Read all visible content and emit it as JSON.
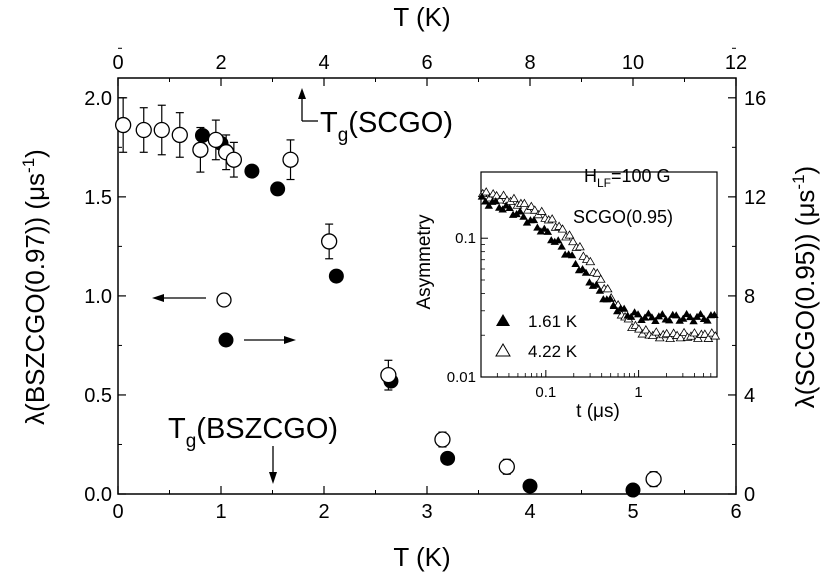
{
  "chart_data": [
    {
      "type": "scatter",
      "xlabel_bottom": "T (K)",
      "xlabel_top": "T (K)",
      "ylabel_left": "λ(BSZCGO(0.97)) (μs-1)",
      "ylabel_right": "λ(SCGO(0.95)) (μs-1)",
      "xlim_bottom": [
        0,
        6
      ],
      "xlim_top": [
        0,
        12
      ],
      "ylim_left": [
        0,
        2.1
      ],
      "ylim_right": [
        0,
        16.8
      ],
      "xticks_bottom": [
        "0",
        "1",
        "2",
        "3",
        "4",
        "5",
        "6"
      ],
      "xticks_top": [
        "0",
        "2",
        "4",
        "6",
        "8",
        "10",
        "12"
      ],
      "yticks_left": [
        "0.0",
        "0.5",
        "1.0",
        "1.5",
        "2.0"
      ],
      "yticks_right": [
        "0",
        "4",
        "8",
        "12",
        "16"
      ],
      "series": [
        {
          "marker": "filled-circle",
          "axes": "bottom-left",
          "x": [
            0.05,
            0.82,
            1.0,
            1.05,
            1.3,
            1.55,
            2.12,
            2.65,
            3.2,
            4.0,
            5.0
          ],
          "y": [
            1.86,
            1.81,
            1.77,
            1.73,
            1.63,
            1.54,
            1.1,
            0.57,
            0.18,
            0.04,
            0.02
          ]
        },
        {
          "marker": "open-circle",
          "axes": "top-right",
          "x": [
            0.1,
            0.5,
            0.85,
            1.2,
            1.6,
            1.9,
            2.1,
            2.25,
            3.35,
            4.1,
            5.25,
            6.3,
            7.55,
            10.4
          ],
          "y": [
            14.9,
            14.7,
            14.7,
            14.5,
            13.9,
            14.3,
            13.8,
            13.5,
            13.5,
            10.2,
            4.8,
            2.2,
            1.1,
            0.6
          ],
          "yerr": [
            1.1,
            0.9,
            1.0,
            0.9,
            0.9,
            0.8,
            0.7,
            0.7,
            0.8,
            0.7,
            0.6,
            0.3,
            0.3,
            0.3
          ]
        }
      ],
      "annotations": [
        {
          "text": "Tg(SCGO)",
          "value_top_axis": 3.6
        },
        {
          "text": "Tg(BSZCGO)",
          "value_bottom_axis": 1.5
        }
      ],
      "legend": {
        "open_symbol_axis": "left arrow",
        "filled_symbol_axis": "right arrow"
      }
    },
    {
      "type": "scatter",
      "scale": "log-log",
      "xlabel": "t (μs)",
      "ylabel": "Asymmetry",
      "xlim": [
        0.02,
        7
      ],
      "ylim": [
        0.01,
        0.3
      ],
      "xticks": [
        "0.1",
        "1"
      ],
      "yticks": [
        "0.01",
        "0.1"
      ],
      "label_field": "HLF=100 G",
      "label_sample": "SCGO(0.95)",
      "series": [
        {
          "name": "1.61 K",
          "marker": "filled-triangle"
        },
        {
          "name": "4.22 K",
          "marker": "open-triangle"
        }
      ]
    }
  ],
  "text": {
    "xlabel_bottom": "T (K)",
    "xlabel_top": "T (K)",
    "ylabel_left_main": "λ(BSZCGO(0.97)) (μs",
    "ylabel_left_sup": "-1",
    "ylabel_left_end": ")",
    "ylabel_right_main": "λ(SCGO(0.95)) (μs",
    "ylabel_right_sup": "-1",
    "ylabel_right_end": ")",
    "tg_scgo_T": "T",
    "tg_scgo_sub": "g",
    "tg_scgo_rest": "(SCGO)",
    "tg_bszcgo_T": "T",
    "tg_bszcgo_sub": "g",
    "tg_bszcgo_rest": "(BSZCGO)",
    "inset_ylabel": "Asymmetry",
    "inset_xlabel": "t (μs)",
    "inset_h": "H",
    "inset_h_sub": "LF",
    "inset_h_rest": "=100 G",
    "inset_sample": "SCGO(0.95)",
    "legend_161": "1.61 K",
    "legend_422": "4.22 K",
    "xticks_bottom": [
      "0",
      "1",
      "2",
      "3",
      "4",
      "5",
      "6"
    ],
    "xticks_top": [
      "0",
      "2",
      "4",
      "6",
      "8",
      "10",
      "12"
    ],
    "yticks_left": [
      "0.0",
      "0.5",
      "1.0",
      "1.5",
      "2.0"
    ],
    "yticks_right": [
      "0",
      "4",
      "8",
      "12",
      "16"
    ],
    "inset_xticks": [
      "0.1",
      "1"
    ],
    "inset_yticks": [
      "0.01",
      "0.1"
    ]
  }
}
